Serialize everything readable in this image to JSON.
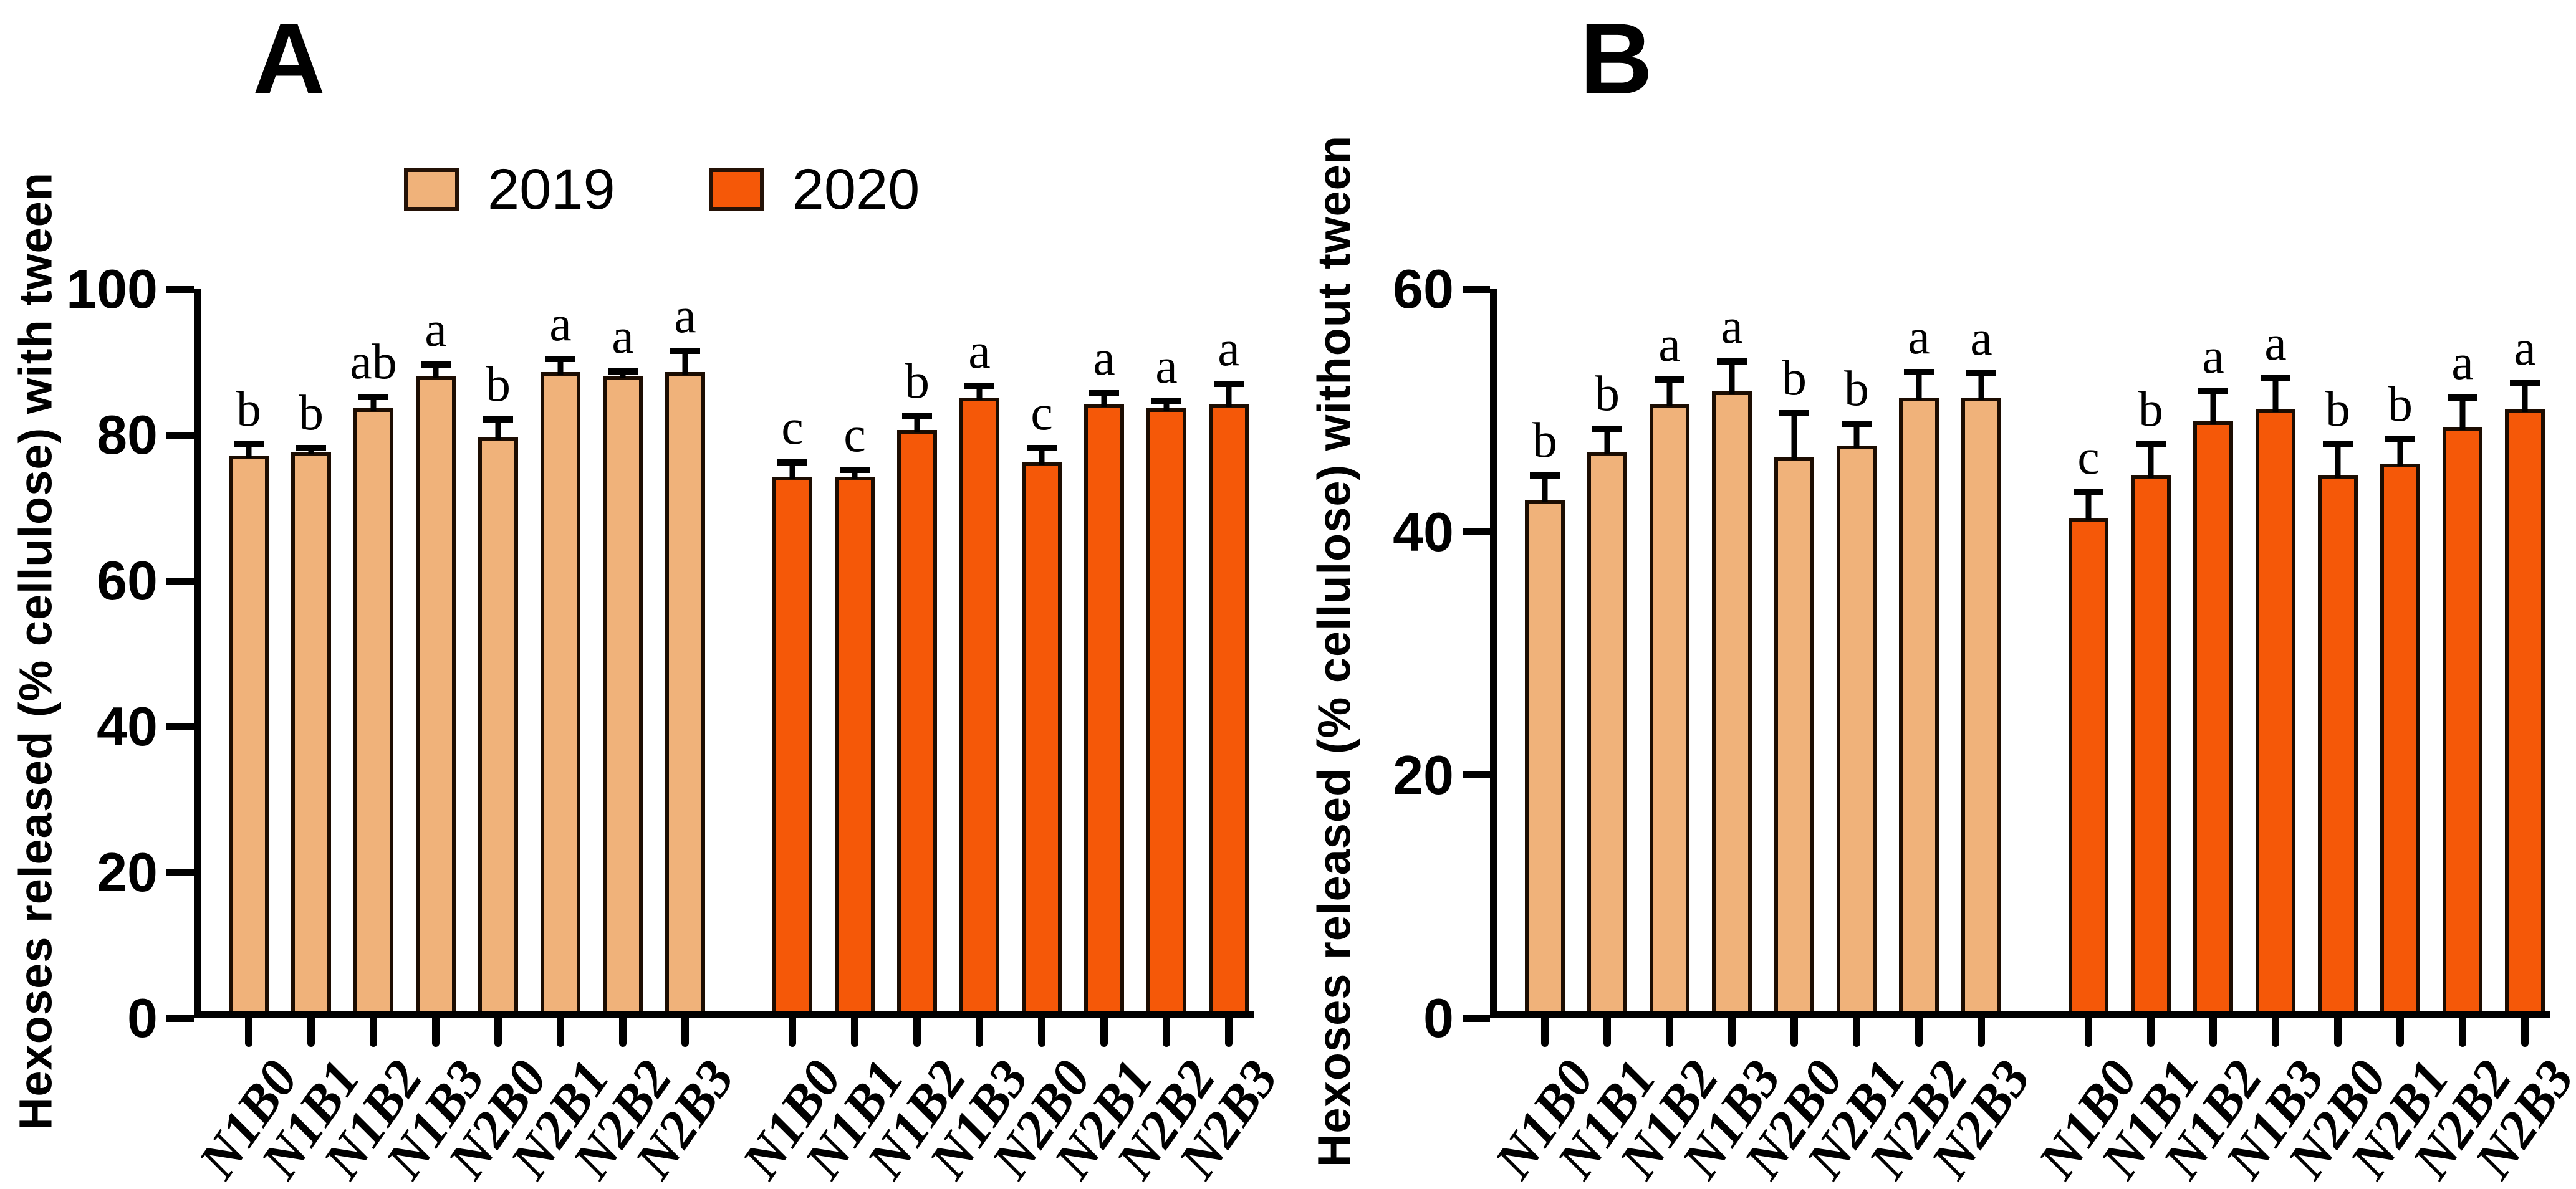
{
  "figure": {
    "background": "#ffffff"
  },
  "legend": {
    "position": "top-left-of-panel-A",
    "items": [
      {
        "label": "2019",
        "color": "#F0B27A"
      },
      {
        "label": "2020",
        "color": "#F55808"
      }
    ]
  },
  "chart_data": [
    {
      "type": "bar",
      "panel_label": "A",
      "ylabel": "Hexoses released (% cellulose) with tween",
      "xlabel": "",
      "ylim": [
        0,
        100
      ],
      "yticks": [
        0,
        20,
        40,
        60,
        80,
        100
      ],
      "grid": false,
      "categories": [
        "N1B0",
        "N1B1",
        "N1B2",
        "N1B3",
        "N2B0",
        "N2B1",
        "N2B2",
        "N2B3"
      ],
      "series": [
        {
          "name": "2019",
          "color": "#F0B27A",
          "values": [
            77,
            77.5,
            83.5,
            88,
            79.5,
            88.5,
            88,
            88.5
          ],
          "errors": [
            1.5,
            0.5,
            1.6,
            1.6,
            2.5,
            1.8,
            0.6,
            3
          ],
          "letters": [
            "b",
            "b",
            "ab",
            "a",
            "b",
            "a",
            "a",
            "a"
          ]
        },
        {
          "name": "2020",
          "color": "#F55808",
          "values": [
            74,
            74,
            80.5,
            85,
            76,
            84,
            83.5,
            84
          ],
          "errors": [
            2,
            1,
            1.9,
            1.5,
            2,
            1.6,
            1,
            2.9
          ],
          "letters": [
            "c",
            "c",
            "b",
            "a",
            "c",
            "a",
            "a",
            "a"
          ]
        }
      ]
    },
    {
      "type": "bar",
      "panel_label": "B",
      "ylabel": "Hexoses released (% cellulose) without tween",
      "xlabel": "",
      "ylim": [
        0,
        60
      ],
      "yticks": [
        0,
        20,
        40,
        60
      ],
      "grid": false,
      "categories": [
        "N1B0",
        "N1B1",
        "N1B2",
        "N1B3",
        "N2B0",
        "N2B1",
        "N2B2",
        "N2B3"
      ],
      "series": [
        {
          "name": "2019",
          "color": "#F0B27A",
          "values": [
            42.5,
            46.5,
            50.5,
            51.5,
            46,
            47,
            51,
            51
          ],
          "errors": [
            2,
            1.9,
            2,
            2.5,
            3.7,
            1.8,
            2.1,
            2
          ],
          "letters": [
            "b",
            "b",
            "a",
            "a",
            "b",
            "b",
            "a",
            "a"
          ]
        },
        {
          "name": "2020",
          "color": "#F55808",
          "values": [
            41,
            44.5,
            49,
            50,
            44.5,
            45.5,
            48.5,
            50
          ],
          "errors": [
            2.1,
            2.6,
            2.5,
            2.6,
            2.6,
            2,
            2.5,
            2.2
          ],
          "letters": [
            "c",
            "b",
            "a",
            "a",
            "b",
            "b",
            "a",
            "a"
          ]
        }
      ]
    }
  ]
}
